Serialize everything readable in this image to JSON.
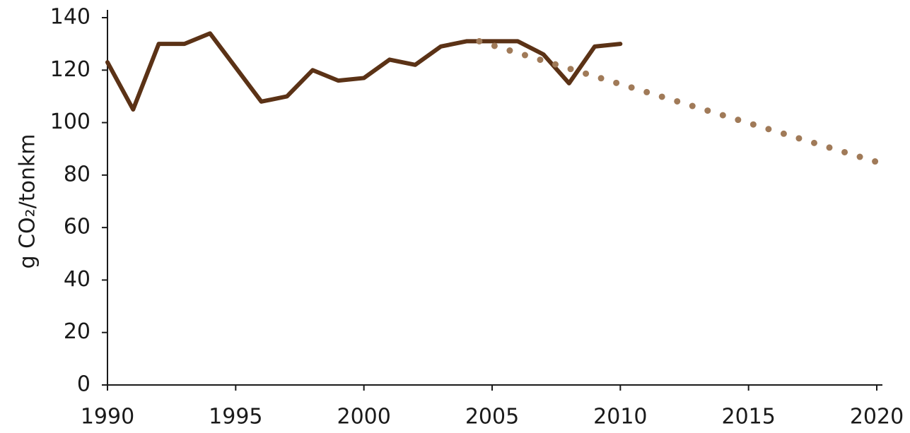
{
  "chart_data": {
    "type": "line",
    "ylabel": "g CO₂/tonkm",
    "xlim": [
      1990,
      2020
    ],
    "xticks": [
      1990,
      1995,
      2000,
      2005,
      2010,
      2015,
      2020
    ],
    "ylim": [
      0,
      140
    ],
    "yticks": [
      0,
      20,
      40,
      60,
      80,
      100,
      120,
      140
    ],
    "grid": false,
    "series": [
      {
        "color": "#5b3216",
        "style": "solid",
        "x": [
          1990,
          1991,
          1992,
          1993,
          1994,
          1995,
          1996,
          1997,
          1998,
          1999,
          2000,
          2001,
          2002,
          2003,
          2004,
          2005,
          2006,
          2007,
          2008,
          2009,
          2010
        ],
        "values": [
          123,
          105,
          130,
          130,
          134,
          121,
          108,
          110,
          120,
          116,
          117,
          124,
          122,
          129,
          131,
          131,
          131,
          126,
          115,
          129,
          130
        ]
      },
      {
        "color": "#a07a58",
        "style": "dotted",
        "x": [
          2004.5,
          2020
        ],
        "values": [
          131,
          85
        ]
      }
    ]
  }
}
